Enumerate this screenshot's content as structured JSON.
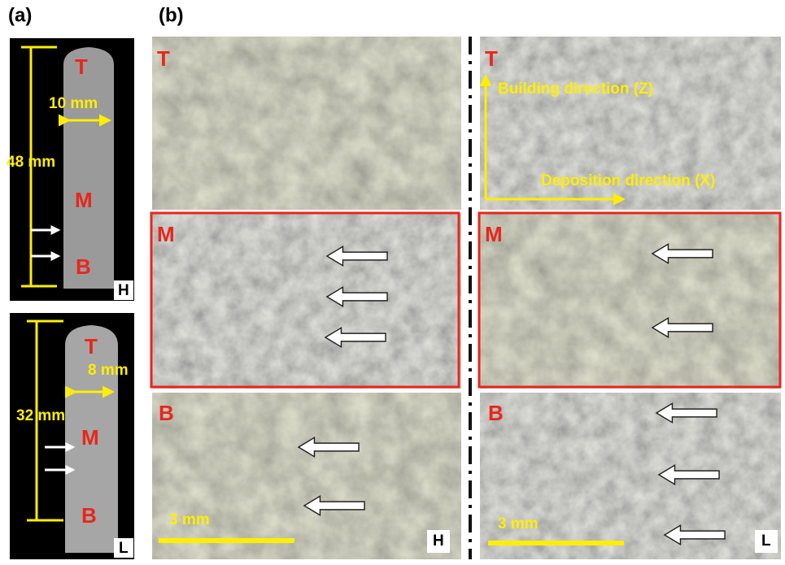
{
  "panel_a": {
    "label": "(a)",
    "sample_h": {
      "regions": [
        "T",
        "M",
        "B"
      ],
      "width": "10 mm",
      "height": "48 mm",
      "tag": "H"
    },
    "sample_l": {
      "regions": [
        "T",
        "M",
        "B"
      ],
      "width": "8 mm",
      "height": "32 mm",
      "tag": "L"
    }
  },
  "panel_b": {
    "label": "(b)",
    "horizontal": {
      "regions": [
        "T",
        "M",
        "B"
      ],
      "scale_bar": "3 mm",
      "tag": "H"
    },
    "longitudinal": {
      "regions": [
        "T",
        "M",
        "B"
      ],
      "building_direction": "Building direction (Z)",
      "deposition_direction": "Deposition direction (X)",
      "scale_bar": "3 mm",
      "tag": "L"
    }
  }
}
